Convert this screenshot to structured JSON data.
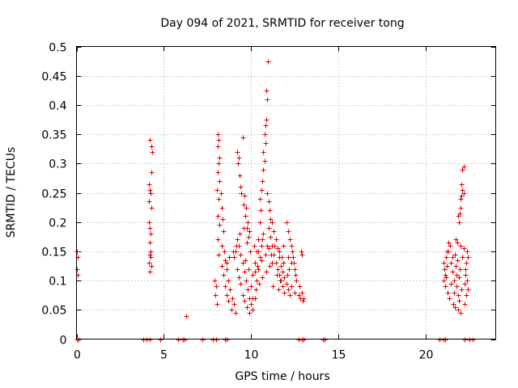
{
  "chart_data": {
    "type": "scatter",
    "title": "Day 094 of 2021, SRMTID for receiver tong",
    "xlabel": "GPS time / hours",
    "ylabel": "SRMTID / TECUs",
    "xlim": [
      0,
      24
    ],
    "ylim": [
      0,
      0.5
    ],
    "xticks": [
      0,
      5,
      10,
      15,
      20
    ],
    "xtick_labels": [
      "0",
      "5",
      "10",
      "15",
      "20"
    ],
    "yticks": [
      0,
      0.05,
      0.1,
      0.15,
      0.2,
      0.25,
      0.3,
      0.35,
      0.4,
      0.45,
      0.5
    ],
    "ytick_labels": [
      "0",
      "0.05",
      "0.1",
      "0.15",
      "0.2",
      "0.25",
      "0.3",
      "0.35",
      "0.4",
      "0.45",
      "0.5"
    ],
    "grid": true,
    "marker": "+",
    "color": "#e00000",
    "series": [
      {
        "name": "SRMTID",
        "points": [
          [
            0.0,
            0.15
          ],
          [
            0.05,
            0.14
          ],
          [
            0.0,
            0.12
          ],
          [
            0.05,
            0.11
          ],
          [
            0.0,
            0.0
          ],
          [
            0.1,
            0.0
          ],
          [
            4.2,
            0.34
          ],
          [
            4.3,
            0.33
          ],
          [
            4.35,
            0.32
          ],
          [
            4.3,
            0.285
          ],
          [
            4.15,
            0.265
          ],
          [
            4.2,
            0.255
          ],
          [
            4.25,
            0.25
          ],
          [
            4.15,
            0.235
          ],
          [
            4.3,
            0.225
          ],
          [
            4.15,
            0.2
          ],
          [
            4.2,
            0.19
          ],
          [
            4.25,
            0.18
          ],
          [
            4.2,
            0.165
          ],
          [
            4.25,
            0.15
          ],
          [
            4.2,
            0.145
          ],
          [
            4.15,
            0.13
          ],
          [
            4.3,
            0.125
          ],
          [
            4.2,
            0.115
          ],
          [
            4.25,
            0.14
          ],
          [
            3.8,
            0.0
          ],
          [
            4.0,
            0.0
          ],
          [
            4.2,
            0.0
          ],
          [
            4.8,
            0.0
          ],
          [
            5.8,
            0.0
          ],
          [
            6.1,
            0.0
          ],
          [
            6.2,
            0.0
          ],
          [
            6.3,
            0.04
          ],
          [
            7.2,
            0.0
          ],
          [
            7.8,
            0.0
          ],
          [
            8.0,
            0.0
          ],
          [
            8.5,
            0.0
          ],
          [
            8.6,
            0.0
          ],
          [
            7.9,
            0.1
          ],
          [
            8.0,
            0.09
          ],
          [
            7.95,
            0.075
          ],
          [
            8.05,
            0.06
          ],
          [
            8.1,
            0.35
          ],
          [
            8.15,
            0.34
          ],
          [
            8.1,
            0.33
          ],
          [
            8.2,
            0.31
          ],
          [
            8.15,
            0.3
          ],
          [
            8.1,
            0.285
          ],
          [
            8.2,
            0.27
          ],
          [
            8.05,
            0.255
          ],
          [
            8.25,
            0.25
          ],
          [
            8.15,
            0.24
          ],
          [
            8.3,
            0.225
          ],
          [
            8.1,
            0.21
          ],
          [
            8.35,
            0.205
          ],
          [
            8.2,
            0.195
          ],
          [
            8.4,
            0.185
          ],
          [
            8.1,
            0.17
          ],
          [
            8.3,
            0.16
          ],
          [
            8.45,
            0.15
          ],
          [
            8.15,
            0.145
          ],
          [
            8.5,
            0.135
          ],
          [
            8.3,
            0.125
          ],
          [
            8.6,
            0.12
          ],
          [
            8.4,
            0.11
          ],
          [
            8.7,
            0.1
          ],
          [
            8.5,
            0.09
          ],
          [
            8.8,
            0.085
          ],
          [
            8.6,
            0.075
          ],
          [
            8.9,
            0.07
          ],
          [
            8.7,
            0.065
          ],
          [
            9.0,
            0.06
          ],
          [
            8.85,
            0.05
          ],
          [
            9.1,
            0.045
          ],
          [
            9.2,
            0.32
          ],
          [
            9.3,
            0.31
          ],
          [
            9.25,
            0.3
          ],
          [
            9.35,
            0.28
          ],
          [
            9.4,
            0.26
          ],
          [
            9.5,
            0.345
          ],
          [
            9.45,
            0.25
          ],
          [
            9.6,
            0.245
          ],
          [
            9.55,
            0.23
          ],
          [
            9.7,
            0.225
          ],
          [
            9.65,
            0.21
          ],
          [
            9.8,
            0.2
          ],
          [
            9.75,
            0.19
          ],
          [
            9.9,
            0.185
          ],
          [
            9.85,
            0.175
          ],
          [
            9.2,
            0.17
          ],
          [
            9.3,
            0.16
          ],
          [
            9.1,
            0.15
          ],
          [
            9.4,
            0.145
          ],
          [
            9.0,
            0.14
          ],
          [
            9.5,
            0.13
          ],
          [
            9.2,
            0.12
          ],
          [
            9.6,
            0.115
          ],
          [
            9.3,
            0.105
          ],
          [
            9.7,
            0.1
          ],
          [
            9.4,
            0.095
          ],
          [
            9.8,
            0.085
          ],
          [
            9.5,
            0.075
          ],
          [
            9.9,
            0.07
          ],
          [
            9.6,
            0.065
          ],
          [
            10.0,
            0.06
          ],
          [
            9.75,
            0.055
          ],
          [
            10.1,
            0.05
          ],
          [
            9.9,
            0.045
          ],
          [
            10.2,
            0.07
          ],
          [
            10.0,
            0.09
          ],
          [
            10.3,
            0.1
          ],
          [
            10.1,
            0.11
          ],
          [
            10.4,
            0.12
          ],
          [
            10.2,
            0.13
          ],
          [
            10.5,
            0.14
          ],
          [
            10.3,
            0.15
          ],
          [
            10.6,
            0.16
          ],
          [
            10.4,
            0.17
          ],
          [
            10.7,
            0.18
          ],
          [
            10.5,
            0.2
          ],
          [
            10.55,
            0.22
          ],
          [
            10.5,
            0.24
          ],
          [
            10.6,
            0.255
          ],
          [
            10.65,
            0.27
          ],
          [
            10.7,
            0.29
          ],
          [
            10.75,
            0.305
          ],
          [
            10.7,
            0.32
          ],
          [
            10.8,
            0.335
          ],
          [
            10.75,
            0.35
          ],
          [
            10.8,
            0.365
          ],
          [
            10.85,
            0.375
          ],
          [
            10.9,
            0.41
          ],
          [
            10.85,
            0.425
          ],
          [
            10.95,
            0.475
          ],
          [
            10.9,
            0.25
          ],
          [
            11.0,
            0.235
          ],
          [
            11.05,
            0.22
          ],
          [
            11.1,
            0.205
          ],
          [
            11.2,
            0.2
          ],
          [
            11.0,
            0.19
          ],
          [
            11.3,
            0.185
          ],
          [
            11.1,
            0.175
          ],
          [
            11.4,
            0.17
          ],
          [
            11.2,
            0.16
          ],
          [
            11.5,
            0.155
          ],
          [
            11.3,
            0.145
          ],
          [
            11.6,
            0.14
          ],
          [
            11.4,
            0.13
          ],
          [
            11.7,
            0.125
          ],
          [
            11.5,
            0.12
          ],
          [
            11.8,
            0.115
          ],
          [
            11.6,
            0.11
          ],
          [
            11.9,
            0.105
          ],
          [
            11.7,
            0.1
          ],
          [
            12.0,
            0.095
          ],
          [
            11.8,
            0.09
          ],
          [
            12.1,
            0.085
          ],
          [
            11.9,
            0.08
          ],
          [
            12.2,
            0.075
          ],
          [
            12.0,
            0.2
          ],
          [
            12.1,
            0.185
          ],
          [
            12.2,
            0.17
          ],
          [
            12.3,
            0.16
          ],
          [
            12.35,
            0.15
          ],
          [
            12.4,
            0.14
          ],
          [
            12.45,
            0.13
          ],
          [
            12.5,
            0.12
          ],
          [
            12.55,
            0.11
          ],
          [
            12.6,
            0.1
          ],
          [
            12.3,
            0.09
          ],
          [
            12.5,
            0.08
          ],
          [
            12.7,
            0.075
          ],
          [
            12.8,
            0.07
          ],
          [
            12.9,
            0.08
          ],
          [
            12.75,
            0.09
          ],
          [
            12.85,
            0.15
          ],
          [
            12.9,
            0.145
          ],
          [
            13.0,
            0.07
          ],
          [
            12.95,
            0.065
          ],
          [
            10.2,
            0.115
          ],
          [
            10.35,
            0.125
          ],
          [
            10.6,
            0.135
          ],
          [
            10.8,
            0.145
          ],
          [
            11.0,
            0.155
          ],
          [
            11.2,
            0.13
          ],
          [
            11.45,
            0.11
          ],
          [
            11.65,
            0.1
          ],
          [
            11.85,
            0.13
          ],
          [
            12.15,
            0.12
          ],
          [
            10.1,
            0.07
          ],
          [
            10.25,
            0.085
          ],
          [
            10.45,
            0.095
          ],
          [
            10.65,
            0.105
          ],
          [
            10.85,
            0.115
          ],
          [
            11.05,
            0.125
          ],
          [
            11.25,
            0.09
          ],
          [
            11.55,
            0.085
          ],
          [
            11.75,
            0.14
          ],
          [
            12.05,
            0.11
          ],
          [
            8.6,
            0.13
          ],
          [
            8.75,
            0.14
          ],
          [
            8.95,
            0.15
          ],
          [
            9.15,
            0.16
          ],
          [
            9.35,
            0.18
          ],
          [
            9.55,
            0.19
          ],
          [
            9.75,
            0.165
          ],
          [
            9.95,
            0.15
          ],
          [
            9.65,
            0.135
          ],
          [
            9.85,
            0.12
          ],
          [
            10.15,
            0.16
          ],
          [
            10.4,
            0.15
          ],
          [
            10.65,
            0.17
          ],
          [
            10.9,
            0.16
          ],
          [
            11.15,
            0.145
          ],
          [
            11.35,
            0.16
          ],
          [
            11.6,
            0.15
          ],
          [
            11.85,
            0.16
          ],
          [
            12.1,
            0.14
          ],
          [
            12.3,
            0.13
          ],
          [
            12.7,
            0.0
          ],
          [
            12.9,
            0.0
          ],
          [
            13.0,
            0.0
          ],
          [
            14.1,
            0.0
          ],
          [
            14.2,
            0.0
          ],
          [
            20.8,
            0.0
          ],
          [
            21.0,
            0.0
          ],
          [
            21.1,
            0.0
          ],
          [
            22.2,
            0.0
          ],
          [
            22.5,
            0.0
          ],
          [
            22.7,
            0.0
          ],
          [
            21.0,
            0.13
          ],
          [
            21.05,
            0.12
          ],
          [
            21.1,
            0.11
          ],
          [
            21.0,
            0.1
          ],
          [
            21.1,
            0.09
          ],
          [
            21.15,
            0.14
          ],
          [
            21.2,
            0.15
          ],
          [
            21.25,
            0.08
          ],
          [
            21.3,
            0.165
          ],
          [
            21.35,
            0.07
          ],
          [
            21.4,
            0.16
          ],
          [
            21.45,
            0.13
          ],
          [
            21.5,
            0.115
          ],
          [
            21.55,
            0.06
          ],
          [
            21.6,
            0.1
          ],
          [
            21.65,
            0.145
          ],
          [
            21.7,
            0.125
          ],
          [
            21.75,
            0.09
          ],
          [
            21.8,
            0.135
          ],
          [
            21.85,
            0.05
          ],
          [
            21.9,
            0.105
          ],
          [
            21.95,
            0.12
          ],
          [
            22.0,
            0.045
          ],
          [
            21.9,
            0.065
          ],
          [
            22.05,
            0.085
          ],
          [
            22.1,
            0.14
          ],
          [
            22.15,
            0.155
          ],
          [
            22.2,
            0.095
          ],
          [
            22.25,
            0.11
          ],
          [
            22.3,
            0.13
          ],
          [
            22.35,
            0.15
          ],
          [
            22.3,
            0.075
          ],
          [
            22.2,
            0.06
          ],
          [
            21.7,
            0.17
          ],
          [
            21.8,
            0.165
          ],
          [
            22.0,
            0.16
          ],
          [
            21.9,
            0.2
          ],
          [
            21.95,
            0.215
          ],
          [
            22.0,
            0.225
          ],
          [
            21.85,
            0.21
          ],
          [
            22.05,
            0.245
          ],
          [
            22.1,
            0.255
          ],
          [
            22.0,
            0.24
          ],
          [
            22.15,
            0.25
          ],
          [
            22.05,
            0.265
          ],
          [
            22.1,
            0.29
          ],
          [
            22.15,
            0.295
          ],
          [
            21.3,
            0.15
          ],
          [
            21.6,
            0.08
          ],
          [
            22.4,
            0.14
          ],
          [
            21.2,
            0.125
          ],
          [
            21.5,
            0.14
          ],
          [
            21.75,
            0.11
          ],
          [
            22.25,
            0.12
          ],
          [
            22.35,
            0.1
          ],
          [
            21.15,
            0.105
          ],
          [
            21.45,
            0.095
          ],
          [
            21.85,
            0.075
          ],
          [
            22.4,
            0.085
          ],
          [
            21.65,
            0.055
          ]
        ]
      }
    ]
  }
}
